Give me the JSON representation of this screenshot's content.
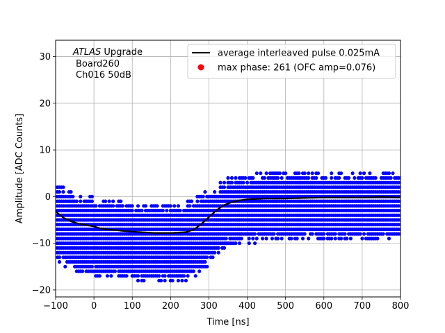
{
  "chart_data": {
    "type": "scatter",
    "xlabel": "Time [ns]",
    "ylabel": "Amplitude [ADC Counts]",
    "xlim": [
      -100,
      800
    ],
    "ylim": [
      -21.5,
      33.5
    ],
    "xticks": [
      -100,
      0,
      100,
      200,
      300,
      400,
      500,
      600,
      700,
      800
    ],
    "yticks": [
      -20,
      -10,
      0,
      10,
      20,
      30
    ],
    "grid": true,
    "legend_position": "top-right",
    "annotation": {
      "experiment": "ATLAS",
      "experiment_suffix": "Upgrade",
      "board": "Board260",
      "channel": "Ch016 50dB"
    },
    "series": [
      {
        "name": "average interleaved pulse 0.025mA",
        "kind": "line",
        "color": "#000000",
        "x": [
          -100,
          -80,
          -60,
          -40,
          -20,
          0,
          20,
          40,
          60,
          80,
          100,
          120,
          140,
          160,
          180,
          200,
          220,
          240,
          260,
          280,
          300,
          320,
          340,
          360,
          380,
          400,
          450,
          500,
          550,
          600,
          650,
          700,
          750,
          800
        ],
        "y": [
          -3.2,
          -4.5,
          -5.3,
          -5.8,
          -6.1,
          -6.4,
          -6.9,
          -7.1,
          -7.2,
          -7.4,
          -7.5,
          -7.6,
          -7.7,
          -7.8,
          -7.8,
          -7.8,
          -7.7,
          -7.6,
          -7.1,
          -5.9,
          -4.4,
          -2.9,
          -1.8,
          -1.2,
          -0.8,
          -0.6,
          -0.4,
          -0.4,
          -0.3,
          -0.2,
          -0.2,
          -0.2,
          -0.1,
          -0.2
        ]
      },
      {
        "name": "max phase: 261 (OFC amp=0.076)",
        "kind": "marker",
        "color": "#ff0000"
      },
      {
        "name": "samples",
        "kind": "scatter",
        "color": "#0000ff",
        "x_step": 5,
        "y_step": 1,
        "band_half_width": {
          "before_pulse": [
            -10,
            6
          ],
          "after_pulse": [
            -9,
            5
          ]
        }
      }
    ]
  },
  "colors": {
    "average": "#000000",
    "samples": "#0000ff",
    "max_phase": "#ff0000",
    "grid": "#b0b0b0"
  }
}
